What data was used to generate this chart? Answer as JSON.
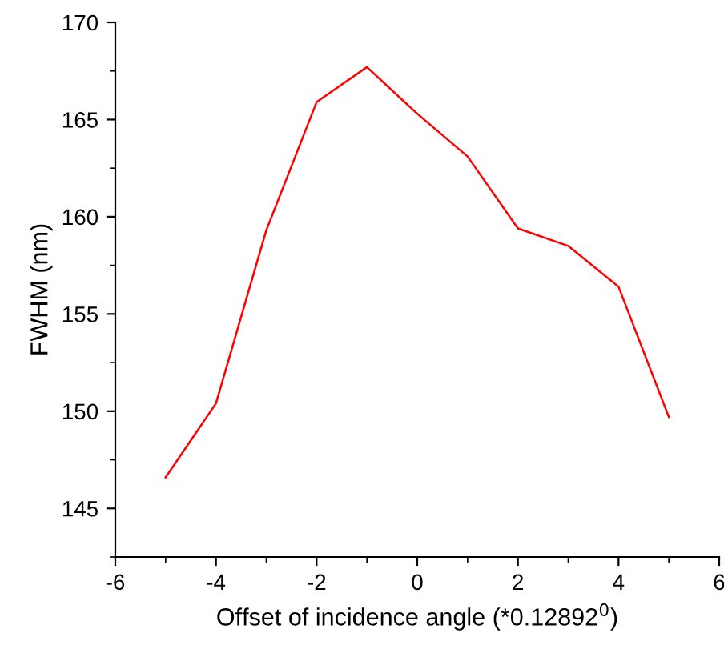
{
  "chart_data": {
    "type": "line",
    "xlabel": "Offset of incidence angle (*0.12892$^{0}$)",
    "ylabel": "FWHM (nm)",
    "x": [
      -5,
      -4,
      -3,
      -2,
      -1,
      0,
      1,
      2,
      3,
      4,
      5
    ],
    "series": [
      {
        "color": "#ff0000",
        "values": [
          146.6,
          150.4,
          159.3,
          165.9,
          167.7,
          165.3,
          163.1,
          159.4,
          158.5,
          156.4,
          149.7
        ]
      }
    ],
    "xlim": [
      -6,
      6
    ],
    "xticks": [
      -6,
      -4,
      -2,
      0,
      2,
      4,
      6
    ],
    "ylim": [
      142.5,
      170
    ],
    "yticks": [
      145,
      150,
      155,
      160,
      165,
      170
    ],
    "grid": false,
    "legend": false,
    "marker": "none",
    "line_style": "solid"
  }
}
